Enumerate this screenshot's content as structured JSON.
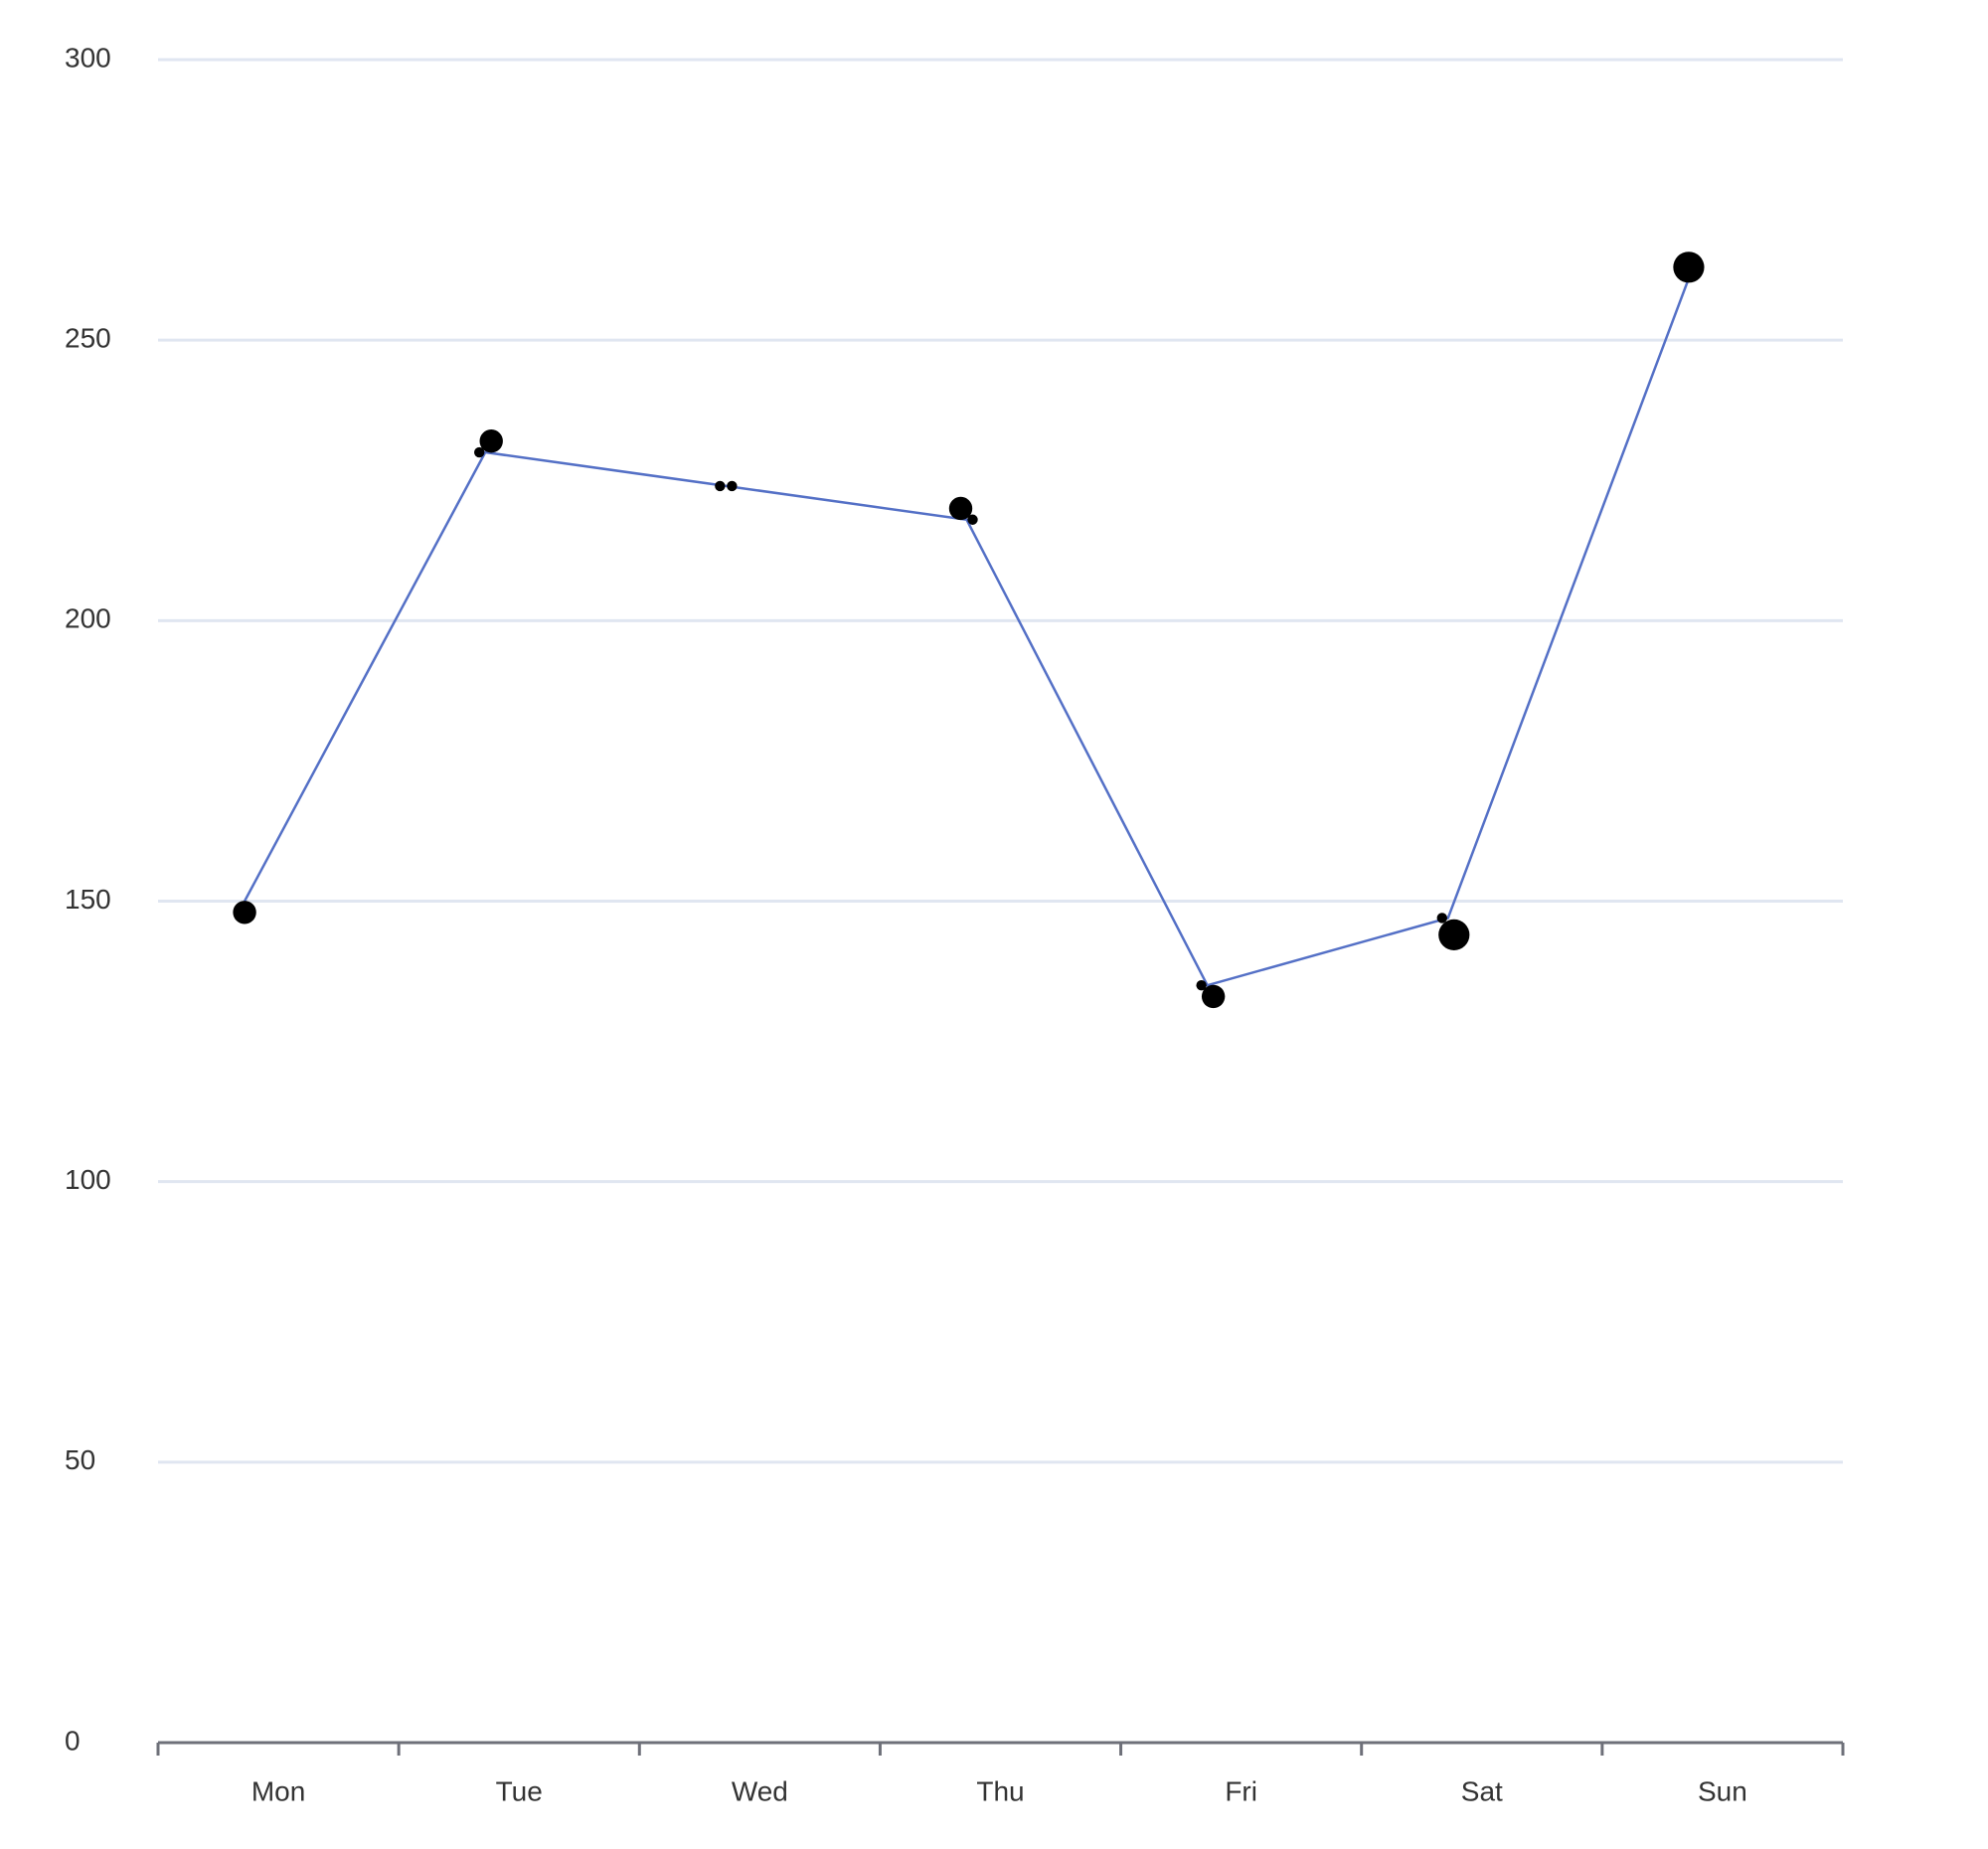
{
  "chart_data": {
    "type": "line",
    "categories": [
      "Mon",
      "Tue",
      "Wed",
      "Thu",
      "Fri",
      "Sat",
      "Sun"
    ],
    "values": [
      150,
      230,
      224,
      218,
      135,
      147,
      261
    ],
    "color": "#5470c6",
    "ylim": [
      0,
      300
    ],
    "yticks": [
      0,
      50,
      100,
      150,
      200,
      250,
      300
    ],
    "grid": true,
    "points": {
      "type": "scatter",
      "color": "#000000",
      "x": [
        0,
        1,
        1,
        2,
        2,
        3,
        3,
        4,
        4,
        5,
        5,
        6
      ],
      "values": [
        148,
        230,
        232,
        224,
        224,
        220,
        218,
        135,
        133,
        147,
        144,
        263
      ],
      "sizes": [
        9,
        4,
        9,
        4,
        4,
        9,
        4,
        4,
        9,
        4,
        12,
        12
      ]
    }
  }
}
